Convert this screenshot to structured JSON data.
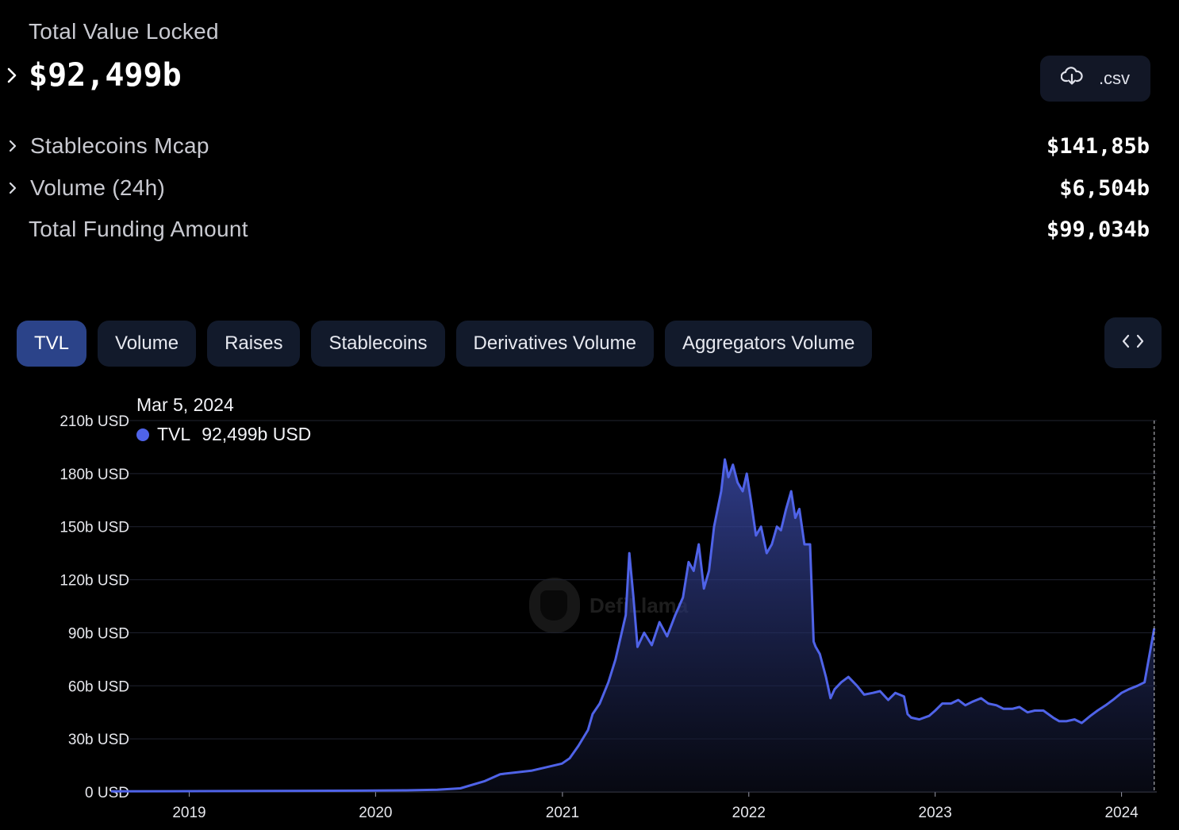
{
  "summary": {
    "tvl_label": "Total Value Locked",
    "tvl_value": "$92,499b",
    "csv_label": ".csv",
    "rows": [
      {
        "name": "Stablecoins Mcap",
        "value": "$141,85b",
        "expandable": true
      },
      {
        "name": "Volume (24h)",
        "value": "$6,504b",
        "expandable": true
      },
      {
        "name": "Total Funding Amount",
        "value": "$99,034b",
        "expandable": false
      }
    ]
  },
  "tabs": [
    {
      "label": "TVL",
      "active": true
    },
    {
      "label": "Volume",
      "active": false
    },
    {
      "label": "Raises",
      "active": false
    },
    {
      "label": "Stablecoins",
      "active": false
    },
    {
      "label": "Derivatives Volume",
      "active": false
    },
    {
      "label": "Aggregators Volume",
      "active": false
    }
  ],
  "icons": {
    "csv": "cloud-download-icon",
    "embed": "code-brackets-icon",
    "expand": "chevron-right-icon"
  },
  "tooltip": {
    "date": "Mar 5, 2024",
    "series": "TVL",
    "value": "92,499b USD"
  },
  "watermark": "DefiLlama",
  "colors": {
    "accent": "#4f63e8",
    "active_tab": "#2b4389",
    "tab_bg": "#121a2b"
  },
  "chart_data": {
    "type": "area",
    "series": [
      {
        "name": "TVL",
        "x": [
          "2018-08-01",
          "2018-12-01",
          "2019-06-01",
          "2019-12-01",
          "2020-03-01",
          "2020-05-01",
          "2020-06-15",
          "2020-08-01",
          "2020-09-01",
          "2020-10-01",
          "2020-11-01",
          "2020-12-01",
          "2020-12-31",
          "2021-01-15",
          "2021-02-01",
          "2021-02-20",
          "2021-03-01",
          "2021-03-15",
          "2021-04-01",
          "2021-04-15",
          "2021-05-05",
          "2021-05-12",
          "2021-05-20",
          "2021-05-28",
          "2021-06-10",
          "2021-06-25",
          "2021-07-10",
          "2021-07-25",
          "2021-08-10",
          "2021-08-25",
          "2021-09-05",
          "2021-09-15",
          "2021-09-25",
          "2021-10-05",
          "2021-10-15",
          "2021-10-25",
          "2021-11-01",
          "2021-11-08",
          "2021-11-15",
          "2021-11-22",
          "2021-12-01",
          "2021-12-10",
          "2021-12-20",
          "2021-12-28",
          "2022-01-05",
          "2022-01-15",
          "2022-01-25",
          "2022-02-05",
          "2022-02-15",
          "2022-02-25",
          "2022-03-05",
          "2022-03-15",
          "2022-03-25",
          "2022-04-02",
          "2022-04-10",
          "2022-04-20",
          "2022-05-01",
          "2022-05-08",
          "2022-05-12",
          "2022-05-20",
          "2022-06-01",
          "2022-06-10",
          "2022-06-18",
          "2022-07-01",
          "2022-07-15",
          "2022-08-01",
          "2022-08-15",
          "2022-09-01",
          "2022-09-15",
          "2022-10-01",
          "2022-10-15",
          "2022-11-01",
          "2022-11-08",
          "2022-11-15",
          "2022-12-01",
          "2022-12-20",
          "2023-01-01",
          "2023-01-15",
          "2023-02-01",
          "2023-02-15",
          "2023-03-01",
          "2023-03-15",
          "2023-04-01",
          "2023-04-15",
          "2023-05-01",
          "2023-05-15",
          "2023-06-01",
          "2023-06-15",
          "2023-07-01",
          "2023-07-15",
          "2023-08-01",
          "2023-08-20",
          "2023-09-01",
          "2023-09-15",
          "2023-10-01",
          "2023-10-15",
          "2023-11-01",
          "2023-11-15",
          "2023-12-01",
          "2023-12-15",
          "2024-01-01",
          "2024-01-15",
          "2024-02-01",
          "2024-02-15",
          "2024-02-25",
          "2024-03-05"
        ],
        "values": [
          0.3,
          0.4,
          0.6,
          0.7,
          0.9,
          1.2,
          2,
          6,
          10,
          11,
          12,
          14,
          16,
          19,
          26,
          35,
          44,
          50,
          62,
          75,
          100,
          135,
          110,
          82,
          90,
          83,
          96,
          88,
          100,
          110,
          130,
          125,
          140,
          115,
          125,
          150,
          160,
          170,
          188,
          178,
          185,
          175,
          170,
          180,
          165,
          145,
          150,
          135,
          140,
          150,
          148,
          160,
          170,
          155,
          160,
          140,
          140,
          85,
          82,
          78,
          65,
          53,
          58,
          62,
          65,
          60,
          55,
          56,
          57,
          52,
          56,
          54,
          44,
          42,
          41,
          43,
          46,
          50,
          50,
          52,
          49,
          51,
          53,
          50,
          49,
          47,
          47,
          48,
          45,
          46,
          46,
          42,
          40,
          40,
          41,
          39,
          43,
          46,
          49,
          52,
          56,
          58,
          60,
          62,
          78,
          92.5
        ]
      }
    ],
    "ylabel": "USD",
    "ylim": [
      0,
      210
    ],
    "yticks": [
      "0 USD",
      "30b USD",
      "60b USD",
      "90b USD",
      "120b USD",
      "150b USD",
      "180b USD",
      "210b USD"
    ],
    "yvalues": [
      0,
      30,
      60,
      90,
      120,
      150,
      180,
      210
    ],
    "xticks": [
      "2019",
      "2020",
      "2021",
      "2022",
      "2023",
      "2024"
    ],
    "xdomain": [
      "2018-08-01",
      "2024-03-10"
    ],
    "grid": true,
    "highlight_date": "2024-03-05"
  }
}
